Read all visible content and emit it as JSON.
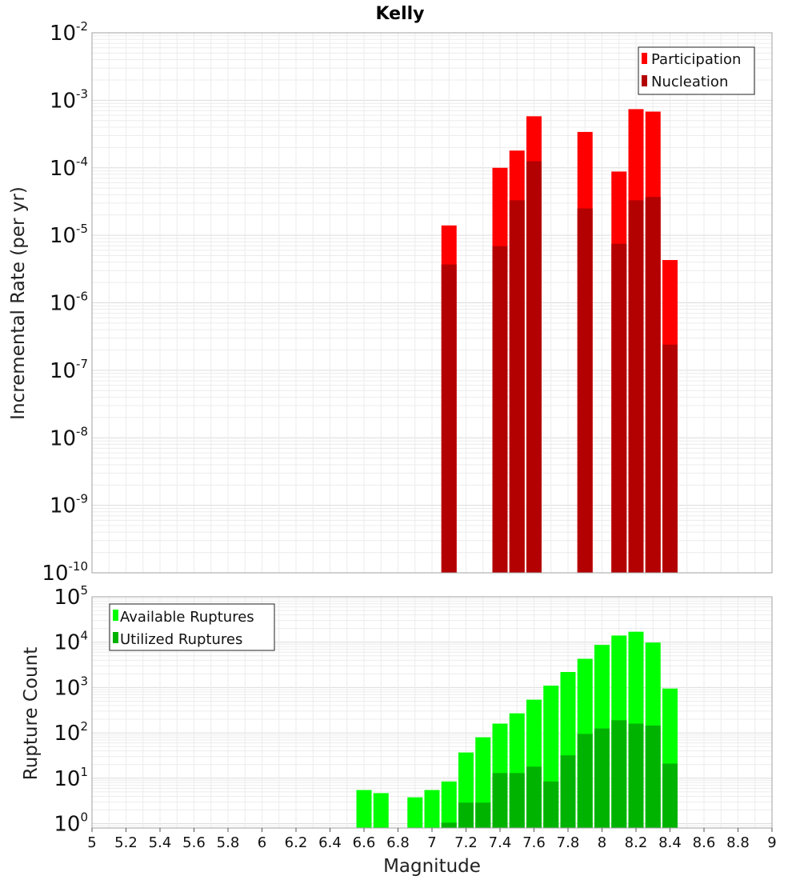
{
  "chart_data": [
    {
      "type": "bar",
      "title": "Kelly",
      "ylabel": "Incremental Rate (per yr)",
      "xlabel": "",
      "yscale": "log",
      "ylim": [
        1e-10,
        0.01
      ],
      "xlim": [
        5,
        9
      ],
      "grid": true,
      "legend_position": "top-right",
      "ytick_labels": [
        {
          "base": "10",
          "exp": "-10",
          "value": 1e-10
        },
        {
          "base": "10",
          "exp": "-9",
          "value": 1e-09
        },
        {
          "base": "10",
          "exp": "-8",
          "value": 1e-08
        },
        {
          "base": "10",
          "exp": "-7",
          "value": 1e-07
        },
        {
          "base": "10",
          "exp": "-6",
          "value": 1e-06
        },
        {
          "base": "10",
          "exp": "-5",
          "value": 1e-05
        },
        {
          "base": "10",
          "exp": "-4",
          "value": 0.0001
        },
        {
          "base": "10",
          "exp": "-3",
          "value": 0.001
        },
        {
          "base": "10",
          "exp": "-2",
          "value": 0.01
        }
      ],
      "x": [
        7.1,
        7.4,
        7.5,
        7.6,
        7.9,
        8.1,
        8.2,
        8.3,
        8.4
      ],
      "series": [
        {
          "name": "Participation",
          "color": "#ff0000",
          "values": [
            1.4e-05,
            0.0001,
            0.00018,
            0.00058,
            0.00034,
            8.8e-05,
            0.00074,
            0.00068,
            4.3e-06
          ]
        },
        {
          "name": "Nucleation",
          "color": "#b30000",
          "values": [
            3.7e-06,
            6.9e-06,
            3.3e-05,
            0.000125,
            2.5e-05,
            7.5e-06,
            3.3e-05,
            3.7e-05,
            2.4e-07
          ]
        }
      ]
    },
    {
      "type": "bar",
      "title": "",
      "ylabel": "Rupture Count",
      "xlabel": "Magnitude",
      "yscale": "log",
      "ylim": [
        0.8,
        100000
      ],
      "xlim": [
        5,
        9
      ],
      "grid": true,
      "legend_position": "top-left",
      "ytick_labels": [
        {
          "base": "10",
          "exp": "0",
          "value": 1
        },
        {
          "base": "10",
          "exp": "1",
          "value": 10
        },
        {
          "base": "10",
          "exp": "2",
          "value": 100
        },
        {
          "base": "10",
          "exp": "3",
          "value": 1000
        },
        {
          "base": "10",
          "exp": "4",
          "value": 10000
        },
        {
          "base": "10",
          "exp": "5",
          "value": 100000
        }
      ],
      "xtick_labels": [
        "5",
        "5.2",
        "5.4",
        "5.6",
        "5.8",
        "6",
        "6.2",
        "6.4",
        "6.6",
        "6.8",
        "7",
        "7.2",
        "7.4",
        "7.6",
        "7.8",
        "8",
        "8.2",
        "8.4",
        "8.6",
        "8.8",
        "9"
      ],
      "xtick_values": [
        5,
        5.2,
        5.4,
        5.6,
        5.8,
        6,
        6.2,
        6.4,
        6.6,
        6.8,
        7,
        7.2,
        7.4,
        7.6,
        7.8,
        8,
        8.2,
        8.4,
        8.6,
        8.8,
        9
      ],
      "x": [
        6.6,
        6.7,
        6.9,
        7.0,
        7.1,
        7.2,
        7.3,
        7.4,
        7.5,
        7.6,
        7.7,
        7.8,
        7.9,
        8.0,
        8.1,
        8.2,
        8.3,
        8.4
      ],
      "series": [
        {
          "name": "Available Ruptures",
          "color": "#00ff00",
          "values": [
            5.5,
            4.7,
            3.8,
            5.5,
            8.5,
            37,
            80,
            160,
            270,
            540,
            1100,
            2200,
            4300,
            8700,
            14000,
            17000,
            9800,
            950
          ]
        },
        {
          "name": "Utilized Ruptures",
          "color": "#00b300",
          "values": [
            0,
            0,
            0,
            0,
            1.05,
            2.9,
            2.9,
            13,
            13,
            18,
            8.5,
            32,
            95,
            125,
            190,
            160,
            145,
            21
          ]
        }
      ]
    }
  ]
}
